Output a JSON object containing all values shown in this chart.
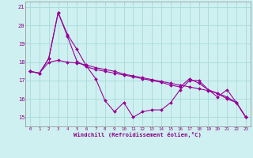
{
  "xlabel": "Windchill (Refroidissement éolien,°C)",
  "background_color": "#cff0f0",
  "grid_color": "#aadddd",
  "line_color": "#990099",
  "ylim": [
    14.5,
    21.3
  ],
  "xlim": [
    -0.5,
    23.5
  ],
  "yticks": [
    15,
    16,
    17,
    18,
    19,
    20,
    21
  ],
  "xticks": [
    0,
    1,
    2,
    3,
    4,
    5,
    6,
    7,
    8,
    9,
    10,
    11,
    12,
    13,
    14,
    15,
    16,
    17,
    18,
    19,
    20,
    21,
    22,
    23
  ],
  "series1": [
    17.5,
    17.4,
    18.2,
    20.7,
    19.5,
    18.7,
    17.8,
    17.1,
    15.9,
    15.3,
    15.8,
    15.0,
    15.3,
    15.4,
    15.4,
    15.8,
    16.5,
    17.0,
    17.0,
    16.5,
    16.3,
    16.0,
    15.8,
    15.0
  ],
  "series2": [
    17.5,
    17.4,
    18.0,
    18.1,
    18.0,
    17.95,
    17.85,
    17.7,
    17.6,
    17.5,
    17.35,
    17.25,
    17.15,
    17.05,
    16.95,
    16.85,
    16.75,
    16.65,
    16.55,
    16.45,
    16.3,
    16.1,
    15.8,
    15.0
  ],
  "series3": [
    17.5,
    17.4,
    18.2,
    20.7,
    19.4,
    18.05,
    17.75,
    17.6,
    17.5,
    17.4,
    17.3,
    17.2,
    17.1,
    17.0,
    16.9,
    16.75,
    16.65,
    17.1,
    16.85,
    16.5,
    16.1,
    16.5,
    15.8,
    15.0
  ]
}
